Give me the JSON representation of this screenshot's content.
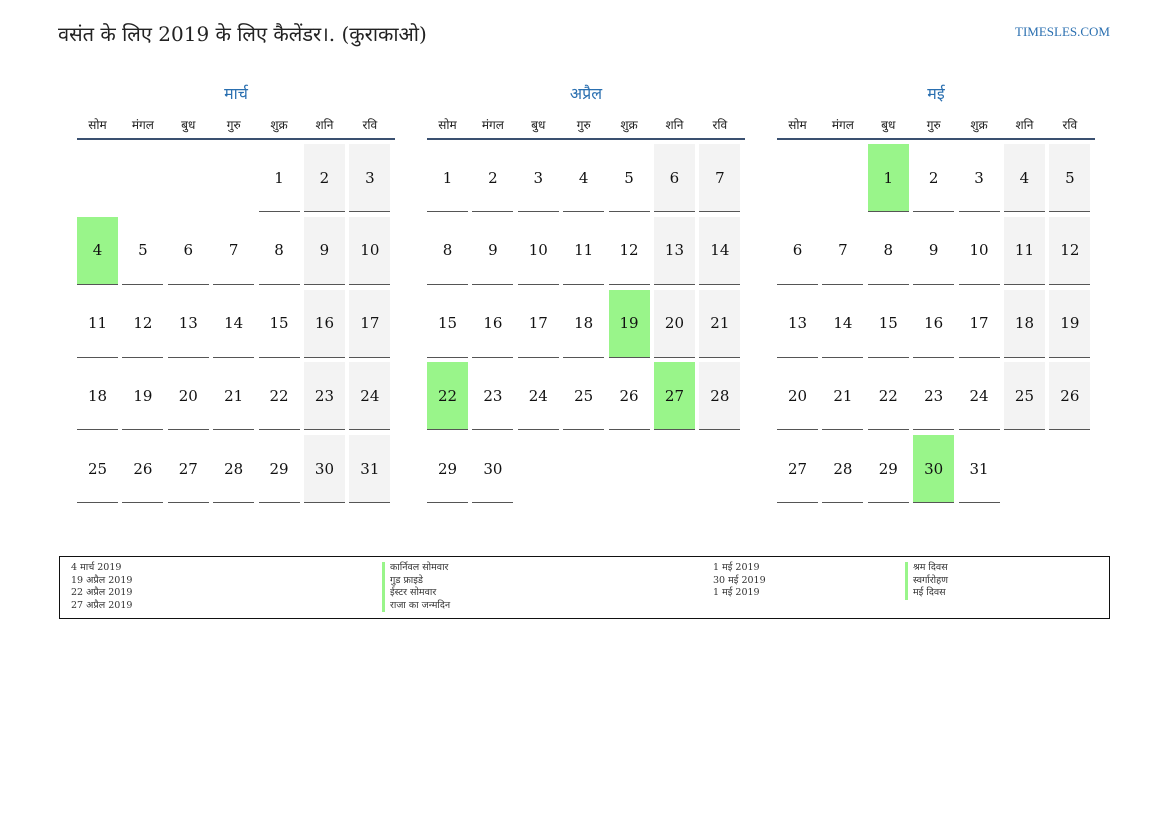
{
  "header": {
    "title": "वसंत के लिए 2019 के लिए कैलेंडर।. (कुराकाओ)",
    "site": "TIMESLES.COM"
  },
  "weekdays": [
    "सोम",
    "मंगल",
    "बुध",
    "गुरु",
    "शुक्र",
    "शनि",
    "रवि"
  ],
  "colors": {
    "accent": "#2a6fb0",
    "holiday": "#99f58a",
    "weekend": "#f3f3f3",
    "rule": "#3a5070"
  },
  "months": [
    {
      "name": "मार्च",
      "weeks": [
        [
          "",
          "",
          "",
          "",
          "1",
          "2",
          "3"
        ],
        [
          "4",
          "5",
          "6",
          "7",
          "8",
          "9",
          "10"
        ],
        [
          "11",
          "12",
          "13",
          "14",
          "15",
          "16",
          "17"
        ],
        [
          "18",
          "19",
          "20",
          "21",
          "22",
          "23",
          "24"
        ],
        [
          "25",
          "26",
          "27",
          "28",
          "29",
          "30",
          "31"
        ]
      ],
      "holidays": [
        "4"
      ]
    },
    {
      "name": "अप्रैल",
      "weeks": [
        [
          "1",
          "2",
          "3",
          "4",
          "5",
          "6",
          "7"
        ],
        [
          "8",
          "9",
          "10",
          "11",
          "12",
          "13",
          "14"
        ],
        [
          "15",
          "16",
          "17",
          "18",
          "19",
          "20",
          "21"
        ],
        [
          "22",
          "23",
          "24",
          "25",
          "26",
          "27",
          "28"
        ],
        [
          "29",
          "30",
          "",
          "",
          "",
          "",
          ""
        ]
      ],
      "holidays": [
        "19",
        "22",
        "27"
      ]
    },
    {
      "name": "मई",
      "weeks": [
        [
          "",
          "",
          "1",
          "2",
          "3",
          "4",
          "5"
        ],
        [
          "6",
          "7",
          "8",
          "9",
          "10",
          "11",
          "12"
        ],
        [
          "13",
          "14",
          "15",
          "16",
          "17",
          "18",
          "19"
        ],
        [
          "20",
          "21",
          "22",
          "23",
          "24",
          "25",
          "26"
        ],
        [
          "27",
          "28",
          "29",
          "30",
          "31",
          "",
          ""
        ]
      ],
      "holidays": [
        "1",
        "30"
      ]
    }
  ],
  "legend": {
    "left": [
      {
        "date": "4 मार्च 2019",
        "name": "कार्निवल सोमवार"
      },
      {
        "date": "19 अप्रैल 2019",
        "name": "गुड फ्राइडे"
      },
      {
        "date": "22 अप्रैल 2019",
        "name": "ईस्टर सोमवार"
      },
      {
        "date": "27 अप्रैल 2019",
        "name": "राजा का जन्मदिन"
      }
    ],
    "right": [
      {
        "date": "1 मई 2019",
        "name": "श्रम दिवस"
      },
      {
        "date": "30 मई 2019",
        "name": "स्वर्गारोहण"
      },
      {
        "date": "1 मई 2019",
        "name": "मई दिवस"
      }
    ]
  }
}
